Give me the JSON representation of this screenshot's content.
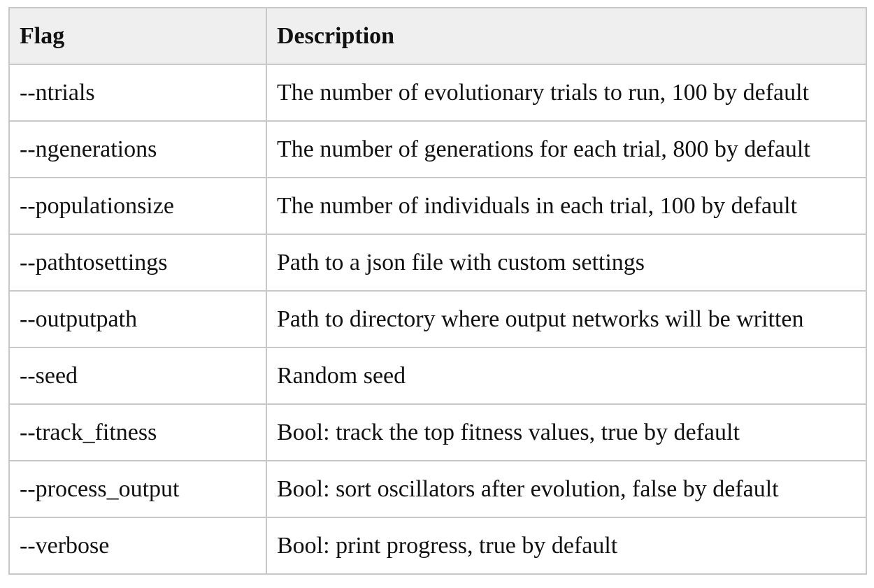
{
  "table": {
    "headers": {
      "flag": "Flag",
      "description": "Description"
    },
    "rows": [
      {
        "flag": "--ntrials",
        "description": "The number of evolutionary trials to run, 100 by default"
      },
      {
        "flag": "--ngenerations",
        "description": "The number of generations for each trial, 800 by default"
      },
      {
        "flag": "--populationsize",
        "description": "The number of individuals in each trial, 100 by default"
      },
      {
        "flag": "--pathtosettings",
        "description": "Path to a json file with custom settings"
      },
      {
        "flag": "--outputpath",
        "description": "Path to directory where output networks will be written"
      },
      {
        "flag": "--seed",
        "description": "Random seed"
      },
      {
        "flag": "--track_fitness",
        "description": "Bool: track the top fitness values, true by default"
      },
      {
        "flag": "--process_output",
        "description": "Bool: sort oscillators after evolution, false by default"
      },
      {
        "flag": "--verbose",
        "description": "Bool: print progress, true by default"
      }
    ]
  },
  "colors": {
    "header_background": "#efefef",
    "border": "#c8c8c8",
    "text": "#111111"
  }
}
